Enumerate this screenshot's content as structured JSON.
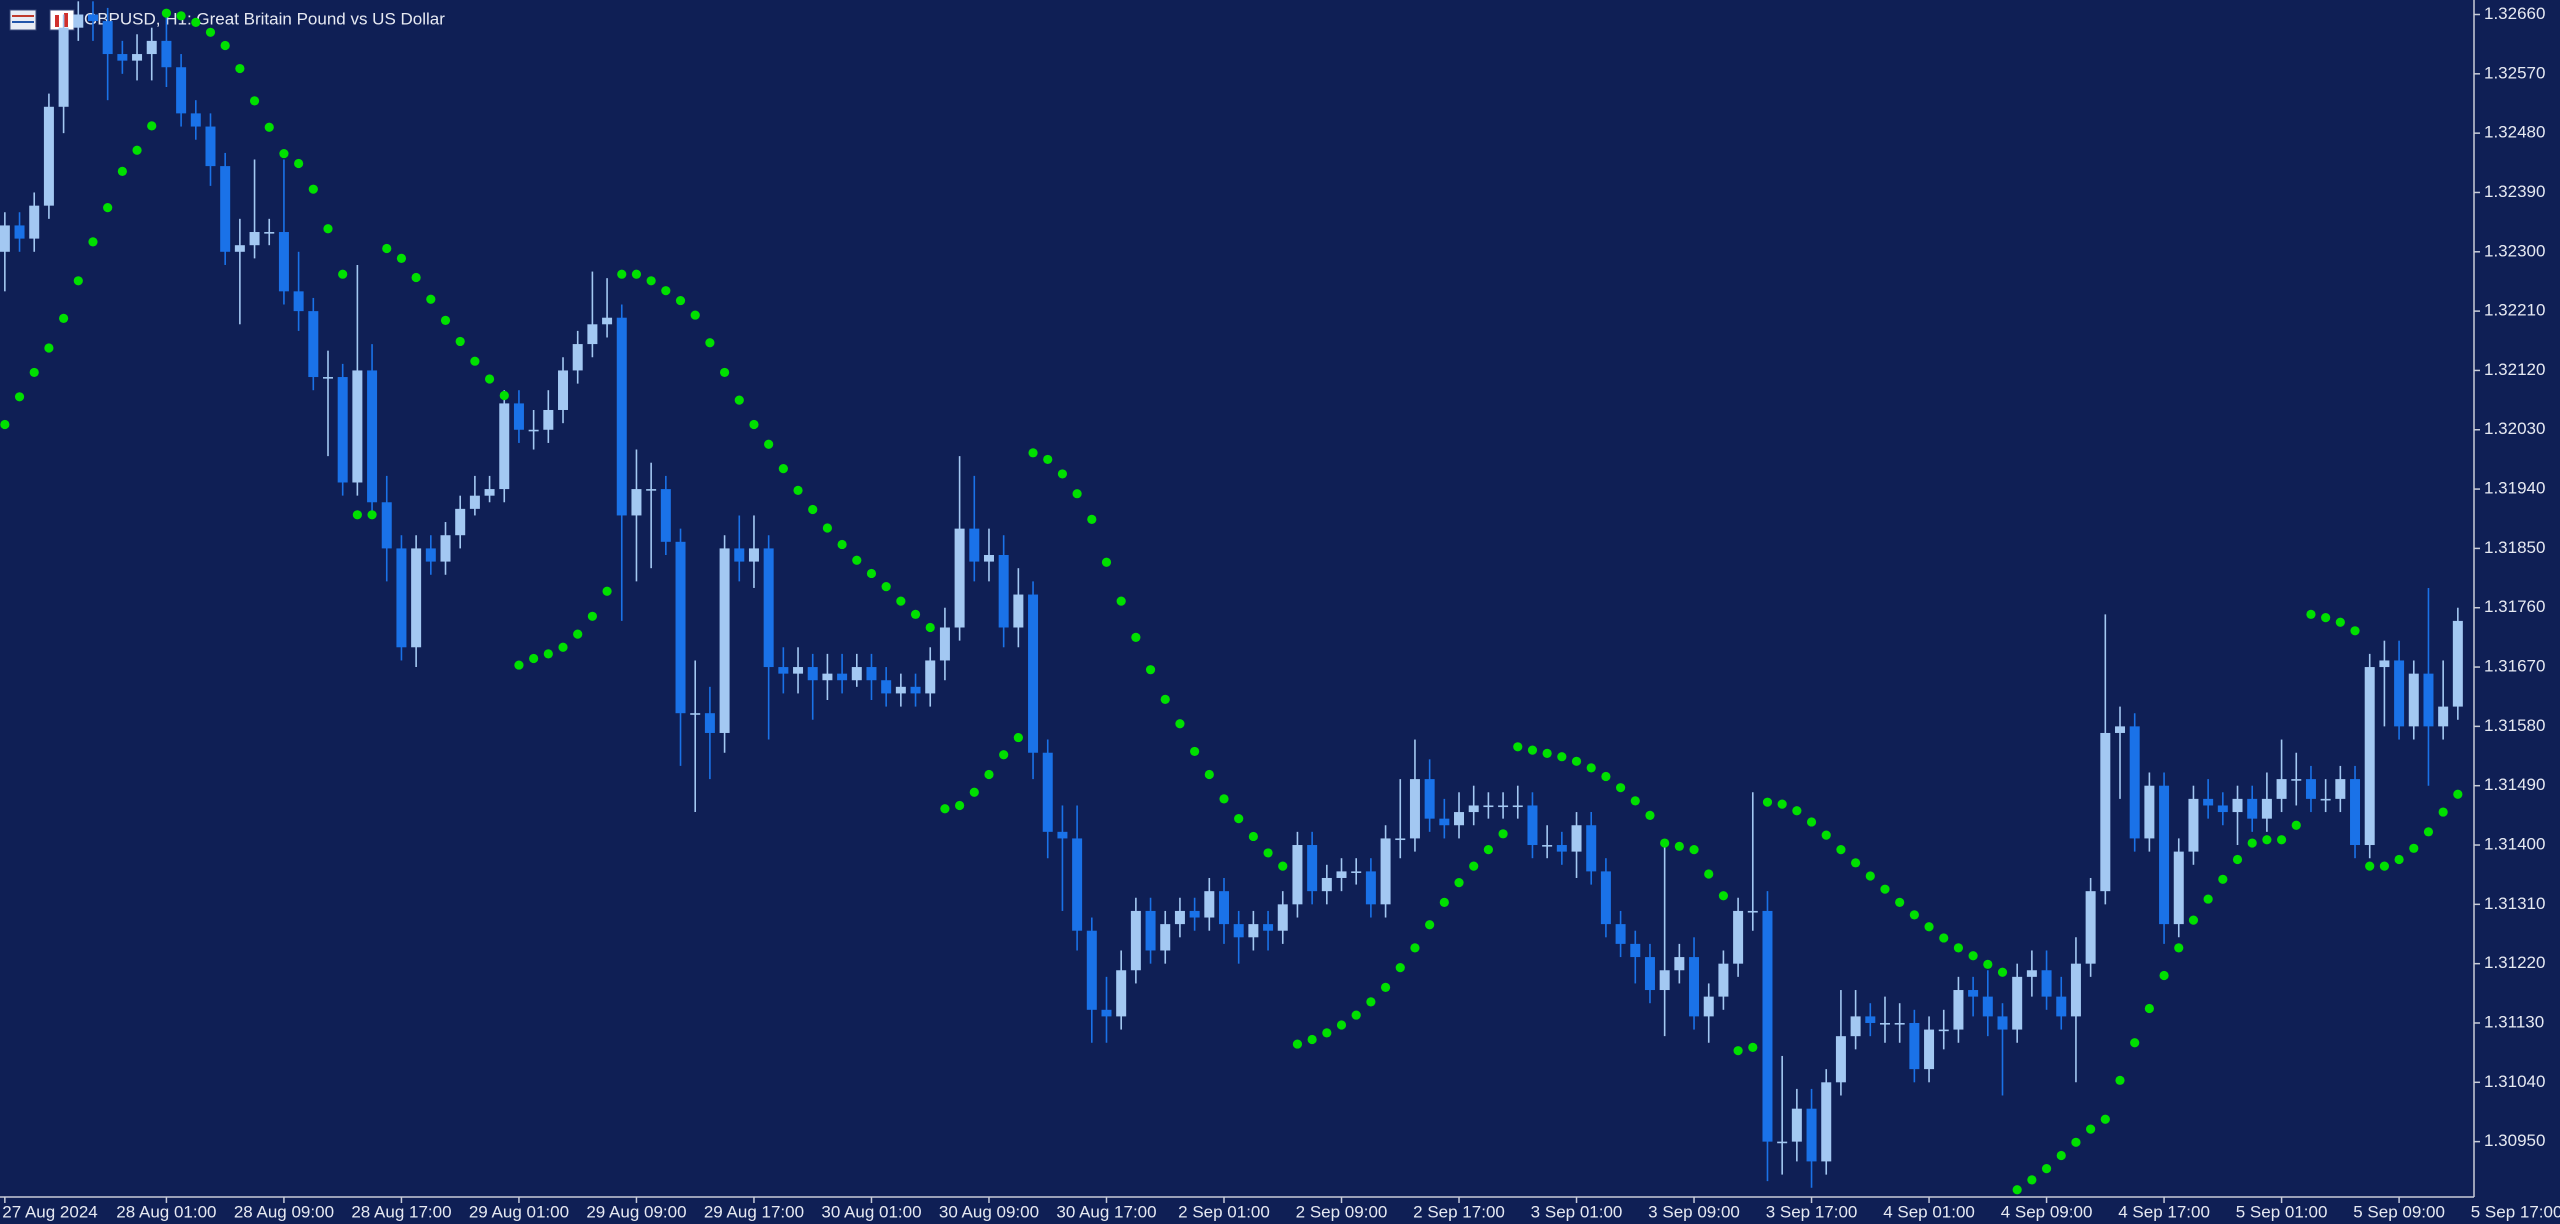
{
  "chart_data": {
    "type": "candlestick",
    "title": "GBPUSD, H1:  Great Britain Pound vs US Dollar",
    "up_color": "#a3c8f2",
    "down_color": "#1a72e8",
    "open": [
      1.323,
      1.3234,
      1.3232,
      1.3237,
      1.3252,
      1.3264,
      1.3266,
      1.3265,
      1.326,
      1.3259,
      1.326,
      1.3262,
      1.3258,
      1.3251,
      1.3249,
      1.3243,
      1.323,
      1.3231,
      1.3233,
      1.3233,
      1.3224,
      1.3221,
      1.3211,
      1.3211,
      1.3195,
      1.3212,
      1.3192,
      1.3185,
      1.317,
      1.3185,
      1.3183,
      1.3187,
      1.3191,
      1.3193,
      1.3194,
      1.3207,
      1.3203,
      1.3203,
      1.3206,
      1.3212,
      1.3216,
      1.3219,
      1.322,
      1.319,
      1.3194,
      1.3194,
      1.3186,
      1.316,
      1.316,
      1.3157,
      1.3185,
      1.3183,
      1.3185,
      1.3167,
      1.3166,
      1.3167,
      1.3165,
      1.3166,
      1.3165,
      1.3167,
      1.3165,
      1.3163,
      1.3164,
      1.3163,
      1.3168,
      1.3173,
      1.3188,
      1.3183,
      1.3184,
      1.3173,
      1.3178,
      1.3154,
      1.3142,
      1.3141,
      1.3127,
      1.3115,
      1.3114,
      1.3121,
      1.313,
      1.3124,
      1.3128,
      1.313,
      1.3129,
      1.3133,
      1.3128,
      1.3126,
      1.3128,
      1.3127,
      1.3131,
      1.314,
      1.3133,
      1.3135,
      1.3136,
      1.3136,
      1.3131,
      1.3141,
      1.3141,
      1.315,
      1.3144,
      1.3143,
      1.3145,
      1.3146,
      1.3146,
      1.3146,
      1.3146,
      1.314,
      1.314,
      1.3139,
      1.3143,
      1.3136,
      1.3128,
      1.3125,
      1.3123,
      1.3118,
      1.3121,
      1.3123,
      1.3114,
      1.3117,
      1.3122,
      1.313,
      1.313,
      1.3095,
      1.3095,
      1.31,
      1.3092,
      1.3104,
      1.3111,
      1.3114,
      1.3113,
      1.3113,
      1.3113,
      1.3106,
      1.3112,
      1.3112,
      1.3118,
      1.3117,
      1.3114,
      1.3112,
      1.312,
      1.3121,
      1.3117,
      1.3114,
      1.3122,
      1.3133,
      1.3157,
      1.3158,
      1.3141,
      1.3149,
      1.3128,
      1.3139,
      1.3147,
      1.3146,
      1.3145,
      1.3147,
      1.3144,
      1.3147,
      1.315,
      1.315,
      1.3147,
      1.3147,
      1.315,
      1.314,
      1.3167,
      1.3168,
      1.3158,
      1.3166,
      1.3158,
      1.3161
    ],
    "high": [
      1.3236,
      1.3236,
      1.3239,
      1.3254,
      1.3266,
      1.3268,
      1.3268,
      1.3267,
      1.3262,
      1.3263,
      1.3264,
      1.3266,
      1.326,
      1.3253,
      1.3251,
      1.3245,
      1.3235,
      1.3244,
      1.3235,
      1.3244,
      1.323,
      1.3223,
      1.3215,
      1.3213,
      1.3228,
      1.3216,
      1.3196,
      1.3187,
      1.3187,
      1.3187,
      1.3189,
      1.3193,
      1.3196,
      1.3196,
      1.3209,
      1.3209,
      1.3206,
      1.3209,
      1.3214,
      1.3218,
      1.3227,
      1.3226,
      1.3222,
      1.32,
      1.3198,
      1.3196,
      1.3188,
      1.3168,
      1.3164,
      1.3187,
      1.319,
      1.319,
      1.3187,
      1.317,
      1.317,
      1.3169,
      1.3169,
      1.3169,
      1.3169,
      1.3169,
      1.3167,
      1.3166,
      1.3166,
      1.317,
      1.3176,
      1.3199,
      1.3196,
      1.3188,
      1.3187,
      1.3182,
      1.318,
      1.3156,
      1.3146,
      1.3146,
      1.3129,
      1.312,
      1.3124,
      1.3132,
      1.3132,
      1.313,
      1.3132,
      1.3132,
      1.3135,
      1.3135,
      1.313,
      1.313,
      1.313,
      1.3133,
      1.3142,
      1.3142,
      1.3137,
      1.3138,
      1.3138,
      1.3138,
      1.3143,
      1.315,
      1.3156,
      1.3153,
      1.3147,
      1.3148,
      1.3149,
      1.3148,
      1.3148,
      1.3149,
      1.3148,
      1.3143,
      1.3142,
      1.3145,
      1.3145,
      1.3138,
      1.313,
      1.3127,
      1.3125,
      1.314,
      1.3125,
      1.3126,
      1.3119,
      1.3124,
      1.3132,
      1.3148,
      1.3133,
      1.3108,
      1.3103,
      1.3103,
      1.3106,
      1.3118,
      1.3118,
      1.3116,
      1.3117,
      1.3116,
      1.3115,
      1.3114,
      1.3115,
      1.312,
      1.312,
      1.3121,
      1.3116,
      1.3122,
      1.3124,
      1.3124,
      1.312,
      1.3126,
      1.3135,
      1.3175,
      1.3161,
      1.316,
      1.3151,
      1.3151,
      1.3141,
      1.3149,
      1.315,
      1.3148,
      1.3149,
      1.3149,
      1.3151,
      1.3156,
      1.3154,
      1.3152,
      1.315,
      1.3152,
      1.3152,
      1.3169,
      1.3171,
      1.3171,
      1.3168,
      1.3179,
      1.3168,
      1.3176
    ],
    "low": [
      1.3224,
      1.323,
      1.323,
      1.3235,
      1.3248,
      1.3262,
      1.3262,
      1.3253,
      1.3257,
      1.3256,
      1.3256,
      1.3255,
      1.3249,
      1.3247,
      1.324,
      1.3228,
      1.3219,
      1.3229,
      1.3231,
      1.3222,
      1.3218,
      1.3209,
      1.3199,
      1.3193,
      1.3193,
      1.319,
      1.318,
      1.3168,
      1.3167,
      1.3181,
      1.3181,
      1.3185,
      1.319,
      1.3192,
      1.3192,
      1.3201,
      1.32,
      1.3201,
      1.3204,
      1.321,
      1.3214,
      1.3217,
      1.3174,
      1.318,
      1.3182,
      1.3184,
      1.3152,
      1.3145,
      1.315,
      1.3154,
      1.318,
      1.3179,
      1.3156,
      1.3163,
      1.3163,
      1.3159,
      1.3162,
      1.3163,
      1.3164,
      1.3162,
      1.3161,
      1.3161,
      1.3161,
      1.3161,
      1.3165,
      1.3171,
      1.318,
      1.318,
      1.317,
      1.317,
      1.315,
      1.3138,
      1.313,
      1.3124,
      1.311,
      1.311,
      1.3112,
      1.3119,
      1.3122,
      1.3122,
      1.3126,
      1.3127,
      1.3127,
      1.3125,
      1.3122,
      1.3124,
      1.3124,
      1.3125,
      1.3129,
      1.3131,
      1.3131,
      1.3133,
      1.3134,
      1.3129,
      1.3129,
      1.3138,
      1.3139,
      1.3142,
      1.3141,
      1.3141,
      1.3143,
      1.3144,
      1.3144,
      1.3144,
      1.3138,
      1.3138,
      1.3137,
      1.3135,
      1.3134,
      1.3126,
      1.3123,
      1.3119,
      1.3116,
      1.3111,
      1.3119,
      1.3112,
      1.311,
      1.3115,
      1.312,
      1.3127,
      1.3089,
      1.309,
      1.3092,
      1.3088,
      1.309,
      1.3102,
      1.3109,
      1.3111,
      1.311,
      1.311,
      1.3104,
      1.3104,
      1.3109,
      1.311,
      1.3114,
      1.3111,
      1.3102,
      1.311,
      1.3117,
      1.3115,
      1.3112,
      1.3104,
      1.312,
      1.3131,
      1.3147,
      1.3139,
      1.3139,
      1.3125,
      1.3126,
      1.3137,
      1.3144,
      1.3143,
      1.314,
      1.3142,
      1.3142,
      1.3145,
      1.3146,
      1.3145,
      1.3145,
      1.3145,
      1.3138,
      1.3138,
      1.3158,
      1.3156,
      1.3156,
      1.3149,
      1.3156,
      1.3159
    ],
    "close": [
      1.3234,
      1.3232,
      1.3237,
      1.3252,
      1.3264,
      1.3266,
      1.3265,
      1.326,
      1.3259,
      1.326,
      1.3262,
      1.3258,
      1.3251,
      1.3249,
      1.3243,
      1.323,
      1.3231,
      1.3233,
      1.3233,
      1.3224,
      1.3221,
      1.3211,
      1.3211,
      1.3195,
      1.3212,
      1.3192,
      1.3185,
      1.317,
      1.3185,
      1.3183,
      1.3187,
      1.3191,
      1.3193,
      1.3194,
      1.3207,
      1.3203,
      1.3203,
      1.3206,
      1.3212,
      1.3216,
      1.3219,
      1.322,
      1.319,
      1.3194,
      1.3194,
      1.3186,
      1.316,
      1.316,
      1.3157,
      1.3185,
      1.3183,
      1.3185,
      1.3167,
      1.3166,
      1.3167,
      1.3165,
      1.3166,
      1.3165,
      1.3167,
      1.3165,
      1.3163,
      1.3164,
      1.3163,
      1.3168,
      1.3173,
      1.3188,
      1.3183,
      1.3184,
      1.3173,
      1.3178,
      1.3154,
      1.3142,
      1.3141,
      1.3127,
      1.3115,
      1.3114,
      1.3121,
      1.313,
      1.3124,
      1.3128,
      1.313,
      1.3129,
      1.3133,
      1.3128,
      1.3126,
      1.3128,
      1.3127,
      1.3131,
      1.314,
      1.3133,
      1.3135,
      1.3136,
      1.3136,
      1.3131,
      1.3141,
      1.3141,
      1.315,
      1.3144,
      1.3143,
      1.3145,
      1.3146,
      1.3146,
      1.3146,
      1.3146,
      1.314,
      1.314,
      1.3139,
      1.3143,
      1.3136,
      1.3128,
      1.3125,
      1.3123,
      1.3118,
      1.3121,
      1.3123,
      1.3114,
      1.3117,
      1.3122,
      1.313,
      1.313,
      1.3095,
      1.3095,
      1.31,
      1.3092,
      1.3104,
      1.3111,
      1.3114,
      1.3113,
      1.3113,
      1.3113,
      1.3106,
      1.3112,
      1.3112,
      1.3118,
      1.3117,
      1.3114,
      1.3112,
      1.312,
      1.3121,
      1.3117,
      1.3114,
      1.3122,
      1.3133,
      1.3157,
      1.3158,
      1.3141,
      1.3149,
      1.3128,
      1.3139,
      1.3147,
      1.3146,
      1.3145,
      1.3147,
      1.3144,
      1.3147,
      1.315,
      1.315,
      1.3147,
      1.3147,
      1.315,
      1.314,
      1.3167,
      1.3168,
      1.3158,
      1.3166,
      1.3158,
      1.3161,
      1.3174
    ],
    "sar": {
      "color": "#00e000",
      "values": [
        1.32038,
        1.3208,
        1.32117,
        1.32154,
        1.32199,
        1.32256,
        1.32315,
        1.32367,
        1.32422,
        1.32454,
        1.32491,
        1.32662,
        1.32658,
        1.32648,
        1.32633,
        1.32613,
        1.32578,
        1.32529,
        1.32489,
        1.32449,
        1.32434,
        1.32395,
        1.32335,
        1.32266,
        1.31901,
        1.31901,
        1.32305,
        1.3229,
        1.32261,
        1.32228,
        1.32196,
        1.32164,
        1.32134,
        1.32107,
        1.32082,
        1.31673,
        1.31683,
        1.3169,
        1.317,
        1.3172,
        1.31747,
        1.31785,
        1.32266,
        1.32266,
        1.32256,
        1.32241,
        1.32226,
        1.32204,
        1.32162,
        1.32117,
        1.32075,
        1.32038,
        1.32008,
        1.31971,
        1.31938,
        1.31909,
        1.31881,
        1.31856,
        1.31832,
        1.31812,
        1.31792,
        1.3177,
        1.3175,
        1.3173,
        1.31455,
        1.3146,
        1.3148,
        1.31507,
        1.31537,
        1.31563,
        1.31995,
        1.31985,
        1.31963,
        1.31933,
        1.31894,
        1.31829,
        1.3177,
        1.31715,
        1.31666,
        1.31621,
        1.31584,
        1.31542,
        1.31507,
        1.3147,
        1.3144,
        1.31413,
        1.31388,
        1.31368,
        1.31098,
        1.31105,
        1.31115,
        1.31127,
        1.31142,
        1.31162,
        1.31184,
        1.31214,
        1.31244,
        1.31279,
        1.31313,
        1.31343,
        1.31368,
        1.31393,
        1.31417,
        1.31549,
        1.31544,
        1.31539,
        1.31534,
        1.31527,
        1.31517,
        1.31504,
        1.31487,
        1.31467,
        1.31445,
        1.31403,
        1.31398,
        1.31393,
        1.31356,
        1.31323,
        1.31088,
        1.31093,
        1.31465,
        1.31462,
        1.31452,
        1.31435,
        1.31415,
        1.31393,
        1.31373,
        1.31353,
        1.31333,
        1.31313,
        1.31294,
        1.31276,
        1.31259,
        1.31244,
        1.31232,
        1.31219,
        1.31207,
        1.30877,
        1.30892,
        1.30909,
        1.30929,
        1.30949,
        1.30969,
        1.30984,
        1.31043,
        1.311,
        1.31152,
        1.31202,
        1.31244,
        1.31286,
        1.31318,
        1.31348,
        1.31378,
        1.31403,
        1.31408,
        1.31408,
        1.3143,
        1.3175,
        1.31745,
        1.31738,
        1.31725,
        1.31368,
        1.31368,
        1.31378,
        1.31395,
        1.3142,
        1.3145,
        1.31477
      ]
    },
    "xlim": [
      -0.33,
      168.1
    ],
    "xticks": [
      {
        "value": 0,
        "label": "27 Aug 2024"
      },
      {
        "value": 11,
        "label": "28 Aug 01:00"
      },
      {
        "value": 19,
        "label": "28 Aug 09:00"
      },
      {
        "value": 27,
        "label": "28 Aug 17:00"
      },
      {
        "value": 35,
        "label": "29 Aug 01:00"
      },
      {
        "value": 43,
        "label": "29 Aug 09:00"
      },
      {
        "value": 51,
        "label": "29 Aug 17:00"
      },
      {
        "value": 59,
        "label": "30 Aug 01:00"
      },
      {
        "value": 67,
        "label": "30 Aug 09:00"
      },
      {
        "value": 75,
        "label": "30 Aug 17:00"
      },
      {
        "value": 83,
        "label": "2 Sep 01:00"
      },
      {
        "value": 91,
        "label": "2 Sep 09:00"
      },
      {
        "value": 99,
        "label": "2 Sep 17:00"
      },
      {
        "value": 107,
        "label": "3 Sep 01:00"
      },
      {
        "value": 115,
        "label": "3 Sep 09:00"
      },
      {
        "value": 123,
        "label": "3 Sep 17:00"
      },
      {
        "value": 131,
        "label": "4 Sep 01:00"
      },
      {
        "value": 139,
        "label": "4 Sep 09:00"
      },
      {
        "value": 147,
        "label": "4 Sep 17:00"
      },
      {
        "value": 155,
        "label": "5 Sep 01:00"
      },
      {
        "value": 163,
        "label": "5 Sep 09:00"
      },
      {
        "value": 171,
        "label": "5 Sep 17:00"
      }
    ],
    "ylim": [
      1.30866,
      1.32682
    ],
    "yticks": [
      {
        "value": 1.3095,
        "label": "1.30950"
      },
      {
        "value": 1.3104,
        "label": "1.31040"
      },
      {
        "value": 1.3113,
        "label": "1.31130"
      },
      {
        "value": 1.3122,
        "label": "1.31220"
      },
      {
        "value": 1.3131,
        "label": "1.31310"
      },
      {
        "value": 1.314,
        "label": "1.31400"
      },
      {
        "value": 1.3149,
        "label": "1.31490"
      },
      {
        "value": 1.3158,
        "label": "1.31580"
      },
      {
        "value": 1.3167,
        "label": "1.31670"
      },
      {
        "value": 1.3176,
        "label": "1.31760"
      },
      {
        "value": 1.3185,
        "label": "1.31850"
      },
      {
        "value": 1.3194,
        "label": "1.31940"
      },
      {
        "value": 1.3203,
        "label": "1.32030"
      },
      {
        "value": 1.3212,
        "label": "1.32120"
      },
      {
        "value": 1.3221,
        "label": "1.32210"
      },
      {
        "value": 1.323,
        "label": "1.32300"
      },
      {
        "value": 1.3239,
        "label": "1.32390"
      },
      {
        "value": 1.3248,
        "label": "1.32480"
      },
      {
        "value": 1.3257,
        "label": "1.32570"
      },
      {
        "value": 1.3266,
        "label": "1.32660"
      }
    ]
  }
}
